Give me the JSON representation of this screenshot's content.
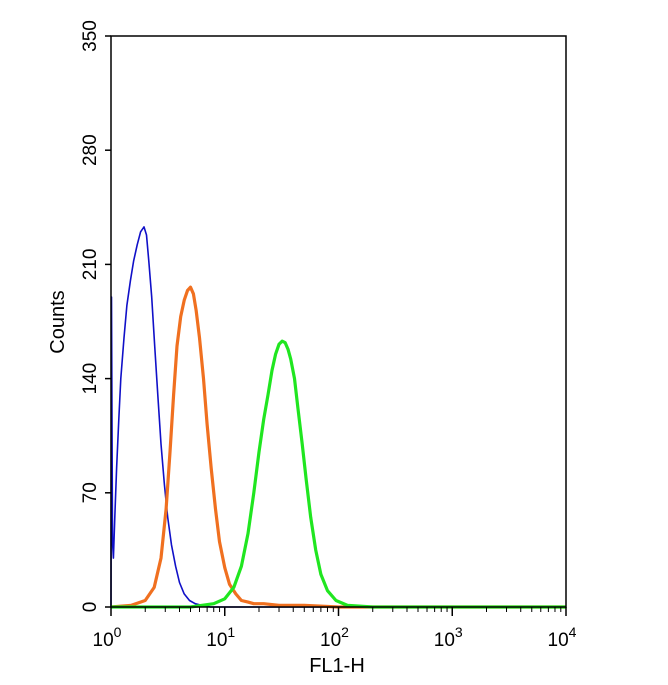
{
  "chart_data": {
    "type": "line",
    "title": "",
    "xlabel": "FL1-H",
    "ylabel": "Counts",
    "x_scale": "log",
    "xlim": [
      1,
      10000
    ],
    "ylim": [
      0,
      350
    ],
    "x_ticks": [
      {
        "value": 1,
        "base": "10",
        "exp": "0"
      },
      {
        "value": 10,
        "base": "10",
        "exp": "1"
      },
      {
        "value": 100,
        "base": "10",
        "exp": "2"
      },
      {
        "value": 1000,
        "base": "10",
        "exp": "3"
      },
      {
        "value": 10000,
        "base": "10",
        "exp": "4"
      }
    ],
    "y_ticks": [
      0,
      70,
      140,
      210,
      280,
      350
    ],
    "y_tick_labels": [
      "0",
      "70",
      "140",
      "210",
      "280",
      "350"
    ],
    "grid": false,
    "legend": "none",
    "series": [
      {
        "color": "#1010c8",
        "x": [
          1.0,
          1.01,
          1.03,
          1.05,
          1.08,
          1.12,
          1.17,
          1.22,
          1.3,
          1.38,
          1.48,
          1.58,
          1.7,
          1.82,
          1.95,
          2.05,
          2.15,
          2.28,
          2.42,
          2.58,
          2.75,
          2.95,
          3.15,
          3.4,
          3.7,
          4.0,
          4.4,
          4.9,
          5.5,
          6.3,
          7.5,
          10,
          20,
          100,
          1000,
          10000
        ],
        "y": [
          0,
          190,
          40,
          30,
          55,
          85,
          115,
          140,
          165,
          185,
          200,
          212,
          222,
          230,
          233,
          228,
          212,
          190,
          160,
          130,
          100,
          75,
          55,
          38,
          25,
          15,
          8,
          4,
          2,
          1,
          0,
          0,
          0,
          0,
          0,
          0
        ]
      },
      {
        "color": "#f07020",
        "x": [
          1.0,
          1.5,
          2.0,
          2.4,
          2.75,
          3.05,
          3.3,
          3.55,
          3.8,
          4.1,
          4.4,
          4.7,
          5.0,
          5.3,
          5.6,
          6.0,
          6.5,
          7.0,
          7.6,
          8.3,
          9.0,
          10.0,
          11.0,
          12.5,
          14,
          16,
          18,
          22,
          30,
          50,
          100,
          200,
          10000
        ],
        "y": [
          0,
          1,
          4,
          12,
          30,
          60,
          95,
          130,
          160,
          178,
          188,
          194,
          196,
          192,
          182,
          165,
          140,
          112,
          85,
          60,
          40,
          24,
          14,
          8,
          4,
          3,
          2,
          2,
          1,
          1,
          0,
          0,
          0
        ]
      },
      {
        "color": "#20e620",
        "x": [
          1.0,
          5.0,
          8.0,
          10.0,
          12,
          14,
          16,
          18,
          20,
          22,
          24,
          26,
          28,
          30,
          32,
          34,
          36,
          38,
          41,
          44,
          48,
          52,
          57,
          63,
          70,
          80,
          95,
          120,
          200,
          10000
        ],
        "y": [
          0,
          0,
          2,
          5,
          12,
          25,
          45,
          70,
          95,
          115,
          130,
          145,
          155,
          161,
          163,
          162,
          158,
          152,
          140,
          122,
          100,
          78,
          55,
          35,
          20,
          10,
          4,
          1,
          0,
          0
        ]
      }
    ]
  }
}
